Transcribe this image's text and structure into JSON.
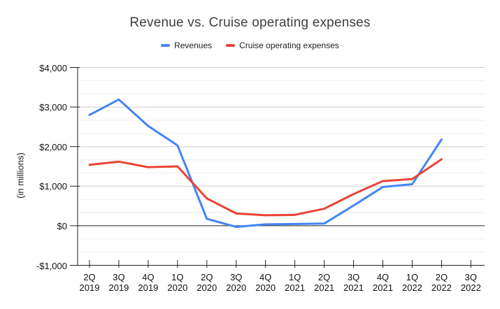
{
  "chart_data": {
    "type": "line",
    "title": "Revenue vs. Cruise operating expenses",
    "ylabel": "(in millions)",
    "legend_position": "top",
    "grid": "horizontal, major every 1000 with 2 minor lines between",
    "ylim": [
      -1000,
      4000
    ],
    "minor_divisions_per_major": 3,
    "y_ticks": [
      {
        "label": "$4,000",
        "value": 4000
      },
      {
        "label": "$3,000",
        "value": 3000
      },
      {
        "label": "$2,000",
        "value": 2000
      },
      {
        "label": "$1,000",
        "value": 1000
      },
      {
        "label": "$0",
        "value": 0
      },
      {
        "label": "-$1,000",
        "value": -1000
      }
    ],
    "categories": [
      "2Q 2019",
      "3Q 2019",
      "4Q 2019",
      "1Q 2020",
      "2Q 2020",
      "3Q 2020",
      "4Q 2020",
      "1Q 2021",
      "2Q 2021",
      "3Q 2021",
      "4Q 2021",
      "1Q 2022",
      "2Q 2022",
      "3Q 2022"
    ],
    "series": [
      {
        "name": "Revenues",
        "color": "#4285f4",
        "values": [
          2800,
          3190,
          2520,
          2030,
          175,
          -30,
          35,
          45,
          55,
          510,
          980,
          1050,
          2180,
          null
        ]
      },
      {
        "name": "Cruise operating expenses",
        "color": "#ea4335",
        "values": [
          1540,
          1620,
          1480,
          1500,
          690,
          310,
          265,
          275,
          430,
          800,
          1130,
          1180,
          1680,
          null
        ]
      }
    ],
    "colors": {
      "major_gridline": "#cccccc",
      "minor_gridline": "#eeeeee",
      "axis_line": "#222222",
      "title_text": "#3c4043",
      "label_text": "#111111"
    }
  }
}
